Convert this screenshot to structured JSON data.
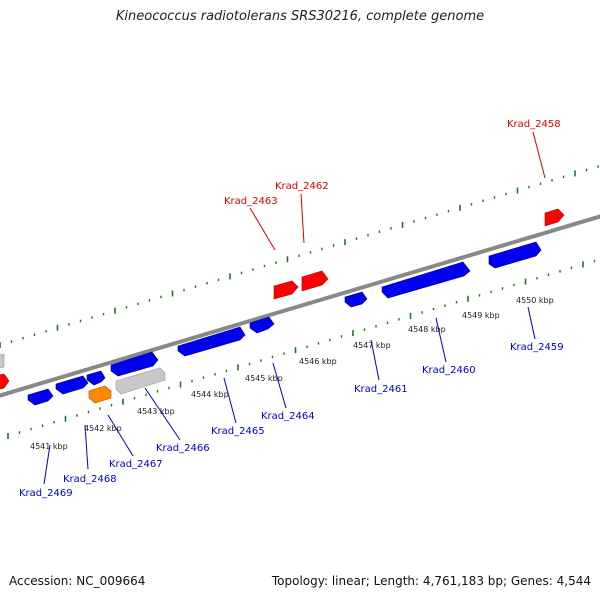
{
  "title": "Kineococcus radiotolerans SRS30216, complete genome",
  "footer": {
    "accession": "Accession: NC_009664",
    "summary": "Topology: linear; Length: 4,761,183 bp; Genes: 4,544"
  },
  "colors": {
    "plus_strand_label": "#dd0000",
    "minus_strand_label": "#0000cc",
    "gene_red": "#ff0000",
    "gene_blue": "#0000ee",
    "gene_orange": "#ff8800",
    "gene_grey": "#c8c8c8",
    "tick_green": "#1a7a1a",
    "axis_grey": "#888888"
  },
  "scale_labels": [
    "4541 kbp",
    "4542 kbp",
    "4543 kbp",
    "4544 kbp",
    "4545 kbp",
    "4546 kbp",
    "4547 kbp",
    "4548 kbp",
    "4549 kbp",
    "4550 kbp"
  ],
  "plus_labels": [
    {
      "id": "Krad_2458",
      "text": "Krad_2458"
    },
    {
      "id": "Krad_2462",
      "text": "Krad_2462"
    },
    {
      "id": "Krad_2463",
      "text": "Krad_2463"
    }
  ],
  "minus_labels": [
    {
      "id": "Krad_2459",
      "text": "Krad_2459"
    },
    {
      "id": "Krad_2460",
      "text": "Krad_2460"
    },
    {
      "id": "Krad_2461",
      "text": "Krad_2461"
    },
    {
      "id": "Krad_2464",
      "text": "Krad_2464"
    },
    {
      "id": "Krad_2465",
      "text": "Krad_2465"
    },
    {
      "id": "Krad_2466",
      "text": "Krad_2466"
    },
    {
      "id": "Krad_2467",
      "text": "Krad_2467"
    },
    {
      "id": "Krad_2468",
      "text": "Krad_2468"
    },
    {
      "id": "Krad_2469",
      "text": "Krad_2469"
    }
  ]
}
